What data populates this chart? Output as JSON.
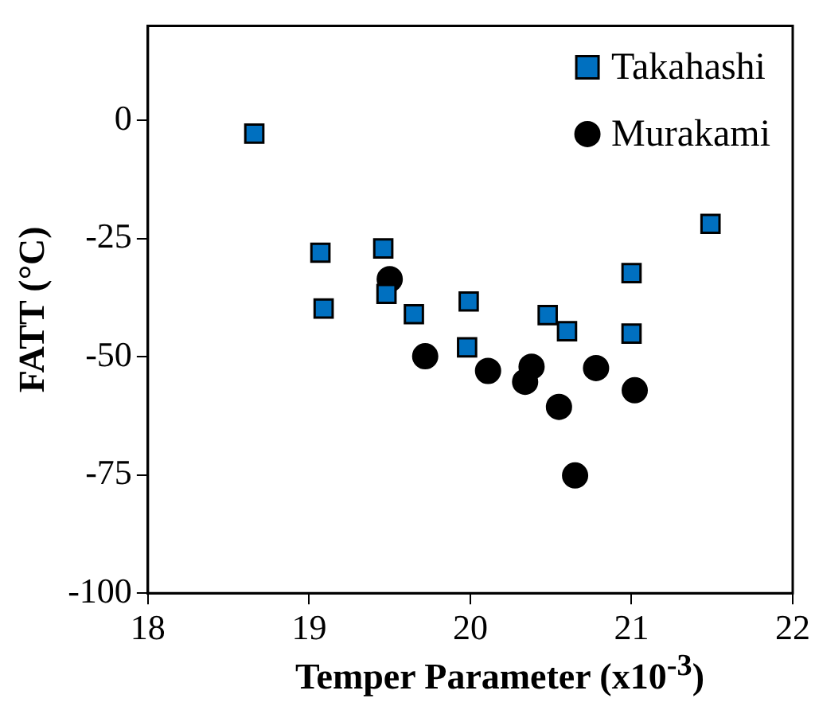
{
  "chart_data": {
    "type": "scatter",
    "xlabel": "Temper Parameter (x10$^{-3}$)",
    "ylabel": "FATT (°C)",
    "xlim": [
      18,
      22
    ],
    "xticks": [
      18,
      19,
      20,
      21,
      22
    ],
    "ylim": [
      -100,
      20
    ],
    "yticks": [
      -100,
      -75,
      -50,
      -25,
      0
    ],
    "grid": false,
    "legend": "top right",
    "series": [
      {
        "name": "Takahashi",
        "color": "#0070c0",
        "marker": "square",
        "x": [
          18.66,
          19.07,
          19.09,
          19.46,
          19.48,
          19.65,
          19.99,
          19.98,
          20.48,
          20.6,
          21.0,
          21.0,
          21.49
        ],
        "values": [
          -2.8,
          -28,
          -39.8,
          -27.1,
          -36.7,
          -41,
          -38.3,
          -48,
          -41.2,
          -44.6,
          -32.3,
          -45.1,
          -21.9
        ]
      },
      {
        "name": "Murakami",
        "color": "#000000",
        "marker": "circle",
        "x": [
          19.5,
          19.72,
          20.11,
          20.38,
          20.34,
          20.55,
          20.65,
          20.78,
          21.02
        ],
        "values": [
          -33.6,
          -49.9,
          -53,
          -52.1,
          -55.3,
          -60.6,
          -75.1,
          -52.4,
          -57.1
        ]
      }
    ]
  }
}
